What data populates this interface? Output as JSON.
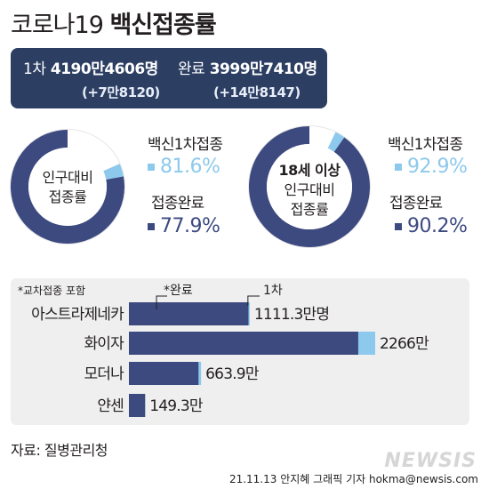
{
  "header": {
    "title_prefix": "코로나19",
    "title_main": "백신접종률"
  },
  "summary": {
    "first_dose": {
      "label": "1차",
      "value": "4190만4606명",
      "change": "(+7만8120)"
    },
    "completed": {
      "label": "완료",
      "value": "3999만7410명",
      "change": "(+14만8147)"
    }
  },
  "donuts": [
    {
      "center_lines": [
        "인구대비",
        "접종률"
      ],
      "first_label": "백신1차접종",
      "first_pct": "81.6%",
      "complete_label": "접종완료",
      "complete_pct": "77.9%",
      "first_value": 81.6,
      "complete_value": 77.9
    },
    {
      "center_lines": [
        "18세 이상",
        "인구대비",
        "접종률"
      ],
      "first_label": "백신1차접종",
      "first_pct": "92.9%",
      "complete_label": "접종완료",
      "complete_pct": "90.2%",
      "first_value": 92.9,
      "complete_value": 90.2
    }
  ],
  "bar_panel": {
    "note": "*교차접종 포함",
    "annot_complete": "*완료",
    "annot_first": "1차"
  },
  "chart_data": {
    "type": "bar",
    "orientation": "horizontal",
    "categories": [
      "아스트라제네카",
      "화이자",
      "모더나",
      "얀센"
    ],
    "series": [
      {
        "name": "완료",
        "values": [
          1100,
          2110,
          640,
          149.3
        ]
      },
      {
        "name": "1차",
        "values": [
          1111.3,
          2266,
          663.9,
          149.3
        ]
      }
    ],
    "value_labels": [
      "1111.3만명",
      "2266만",
      "663.9만",
      "149.3만"
    ],
    "colors": {
      "completed": "#3d4a80",
      "first": "#8dc9ec"
    }
  },
  "footer": {
    "source": "자료: 질병관리청",
    "credit": "21.11.13 안지혜 그래픽 기자 hokma@newsis.com",
    "watermark": "NEWSIS"
  }
}
